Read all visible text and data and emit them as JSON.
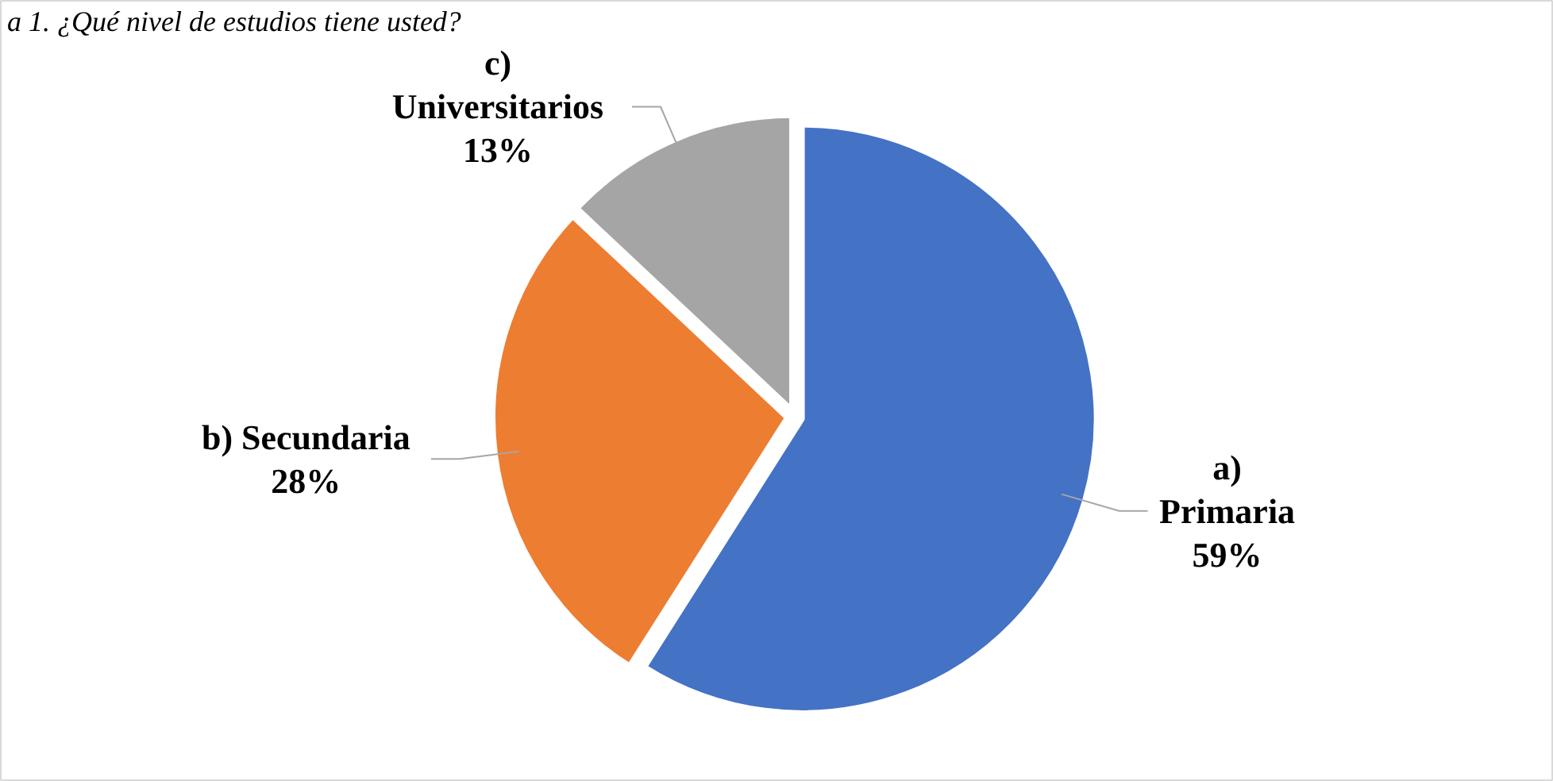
{
  "chart_data": {
    "type": "pie",
    "title": "a 1. ¿Qué nivel de estudios tiene usted?",
    "categories": [
      "a) Primaria",
      "b) Secundaria",
      "c) Universitarios"
    ],
    "values": [
      59,
      28,
      13
    ],
    "colors": [
      "#4472c4",
      "#ed7d31",
      "#a5a5a5"
    ],
    "value_labels": [
      "59%",
      "28%",
      "13%"
    ]
  }
}
